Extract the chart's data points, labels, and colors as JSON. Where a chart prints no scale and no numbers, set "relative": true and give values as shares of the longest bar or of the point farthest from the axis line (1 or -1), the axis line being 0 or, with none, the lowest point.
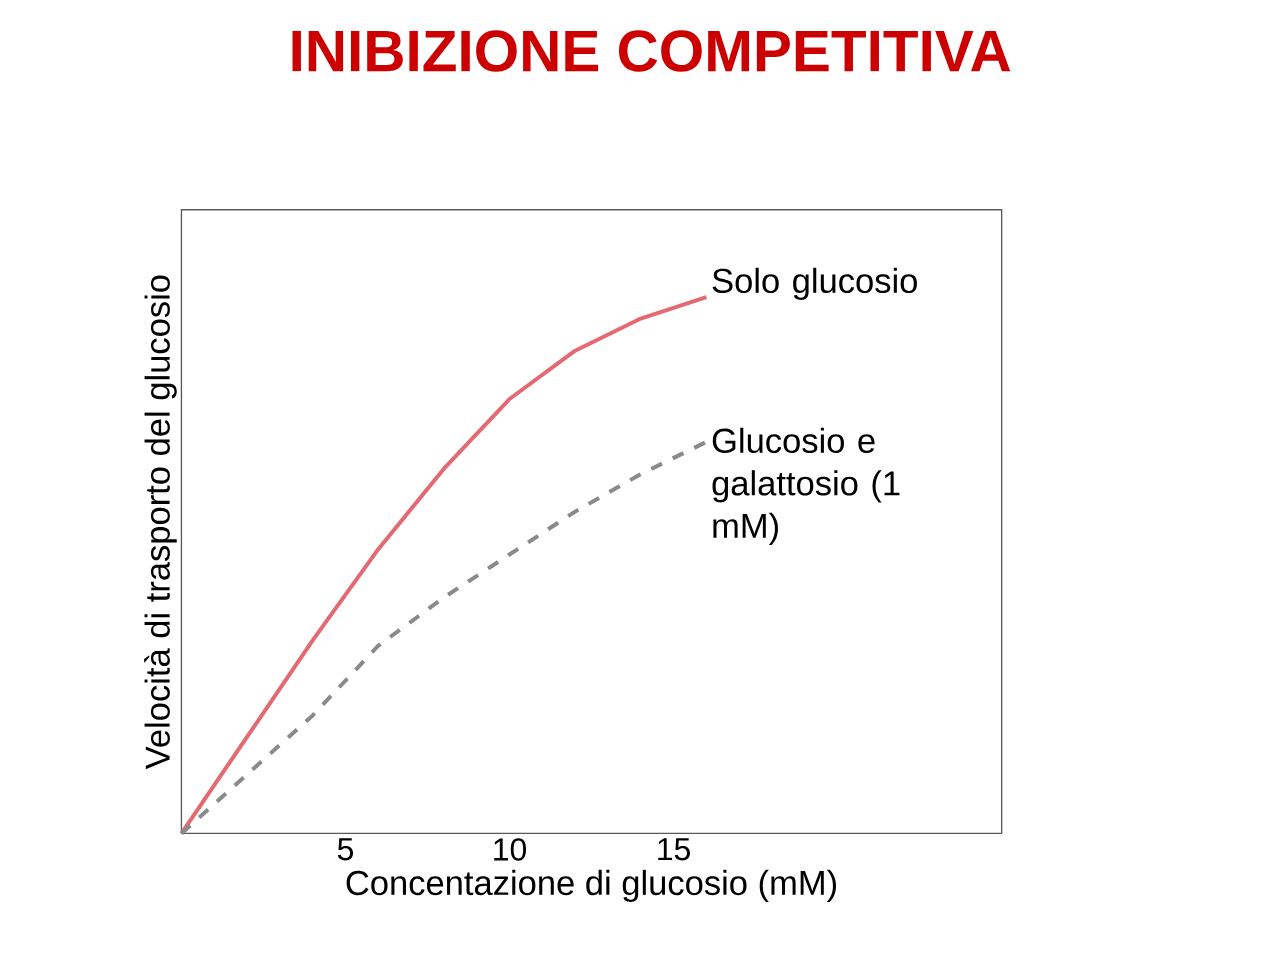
{
  "chart_data": {
    "type": "line",
    "title": "INIBIZIONE COMPETITIVA",
    "xlabel": "Concentazione di glucosio (mM)",
    "ylabel": "Velocità di trasporto del glucosio",
    "relative": true,
    "xlim": [
      0,
      25
    ],
    "xticks": [
      5,
      10,
      15
    ],
    "x": [
      0,
      2,
      4,
      6,
      8,
      10,
      12,
      14,
      16
    ],
    "series": [
      {
        "name": "Solo glucosio",
        "color": "#e36a72",
        "line_style": "solid",
        "values": [
          0,
          0.18,
          0.36,
          0.53,
          0.68,
          0.81,
          0.9,
          0.96,
          1
        ]
      },
      {
        "name": "Glucosio e galattosio (1 mM)",
        "color": "#8a8a8a",
        "line_style": "dashed",
        "values": [
          0,
          0.11,
          0.22,
          0.35,
          0.44,
          0.52,
          0.6,
          0.67,
          0.73
        ]
      }
    ]
  }
}
